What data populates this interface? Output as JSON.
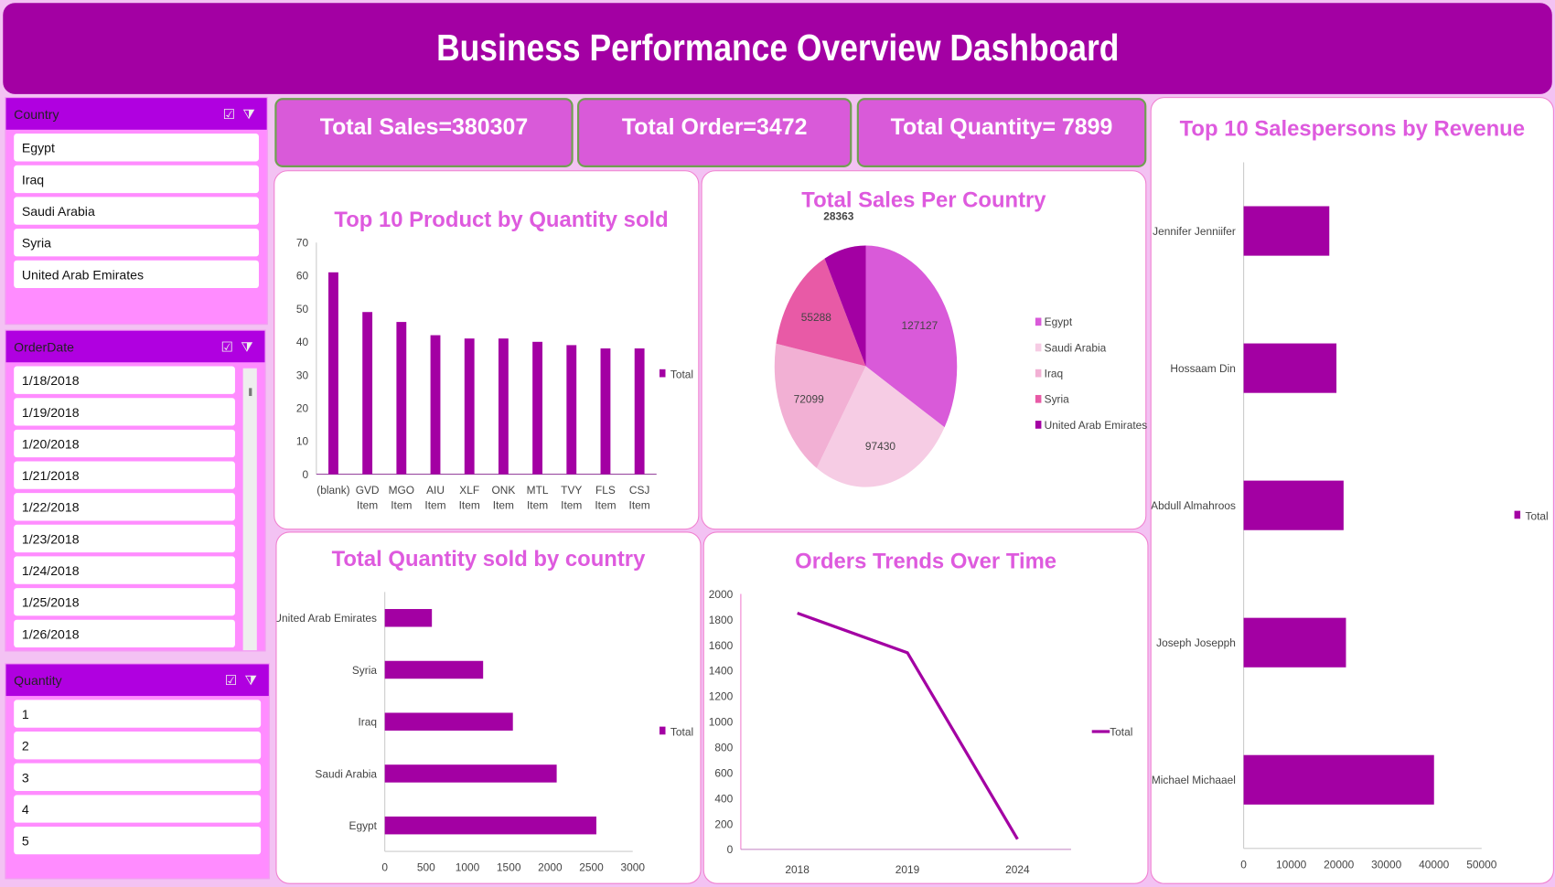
{
  "title": "Business Performance Overview Dashboard",
  "colors": {
    "primary": "#a300a3",
    "slicer_head": "#b000e0",
    "kpi": "#d95ad9",
    "title": "#de5ade"
  },
  "slicers": {
    "country": {
      "label": "Country",
      "items": [
        "Egypt",
        "Iraq",
        "Saudi Arabia",
        "Syria",
        "United Arab Emirates"
      ]
    },
    "orderdate": {
      "label": "OrderDate",
      "items": [
        "1/18/2018",
        "1/19/2018",
        "1/20/2018",
        "1/21/2018",
        "1/22/2018",
        "1/23/2018",
        "1/24/2018",
        "1/25/2018",
        "1/26/2018"
      ]
    },
    "quantity": {
      "label": "Quantity",
      "items": [
        "1",
        "2",
        "3",
        "4",
        "5"
      ]
    }
  },
  "kpis": {
    "sales": "Total Sales=380307",
    "orders": "Total Order=3472",
    "quantity": "Total Quantity= 7899"
  },
  "chart_data": [
    {
      "id": "products",
      "type": "bar",
      "title": "Top 10 Product by Quantity sold",
      "categories": [
        "(blank)",
        "GVD Item",
        "MGO Item",
        "AIU Item",
        "XLF Item",
        "ONK Item",
        "MTL Item",
        "TVY Item",
        "FLS Item",
        "CSJ Item"
      ],
      "values": [
        61,
        49,
        46,
        42,
        41,
        41,
        40,
        39,
        38,
        38
      ],
      "ylim": [
        0,
        70
      ],
      "yticks": [
        0,
        10,
        20,
        30,
        40,
        50,
        60,
        70
      ],
      "legend": "Total"
    },
    {
      "id": "pie",
      "type": "pie",
      "title": "Total Sales Per Country",
      "categories": [
        "Egypt",
        "Saudi Arabia",
        "Iraq",
        "Syria",
        "United Arab Emirates"
      ],
      "values": [
        127127,
        97430,
        72099,
        55288,
        28363
      ],
      "colors": [
        "#d95ad9",
        "#f6cce4",
        "#f2b0d4",
        "#e85aa6",
        "#a300a3"
      ]
    },
    {
      "id": "qtycountry",
      "type": "bar",
      "orientation": "horizontal",
      "title": "Total Quantity sold by country",
      "categories": [
        "United Arab Emirates",
        "Syria",
        "Iraq",
        "Saudi Arabia",
        "Egypt"
      ],
      "values": [
        570,
        1190,
        1550,
        2080,
        2560
      ],
      "xlim": [
        0,
        3000
      ],
      "xticks": [
        0,
        500,
        1000,
        1500,
        2000,
        2500,
        3000
      ],
      "legend": "Total"
    },
    {
      "id": "trend",
      "type": "line",
      "title": "Orders Trends Over Time",
      "categories": [
        "2018",
        "2019",
        "2024"
      ],
      "values": [
        1850,
        1540,
        80
      ],
      "ylim": [
        0,
        2000
      ],
      "yticks": [
        0,
        200,
        400,
        600,
        800,
        1000,
        1200,
        1400,
        1600,
        1800,
        2000
      ],
      "legend": "Total"
    },
    {
      "id": "sales",
      "type": "bar",
      "orientation": "horizontal",
      "title": "Top 10 Salespersons by Revenue",
      "categories": [
        "Jennifer Jenniifer",
        "Hossaam Din",
        "Abdull Almahroos",
        "Joseph Josepph",
        "Michael Michaael"
      ],
      "values": [
        18000,
        19500,
        21000,
        21500,
        40000
      ],
      "xlim": [
        0,
        50000
      ],
      "xticks": [
        0,
        10000,
        20000,
        30000,
        40000,
        50000
      ],
      "legend": "Total"
    }
  ]
}
